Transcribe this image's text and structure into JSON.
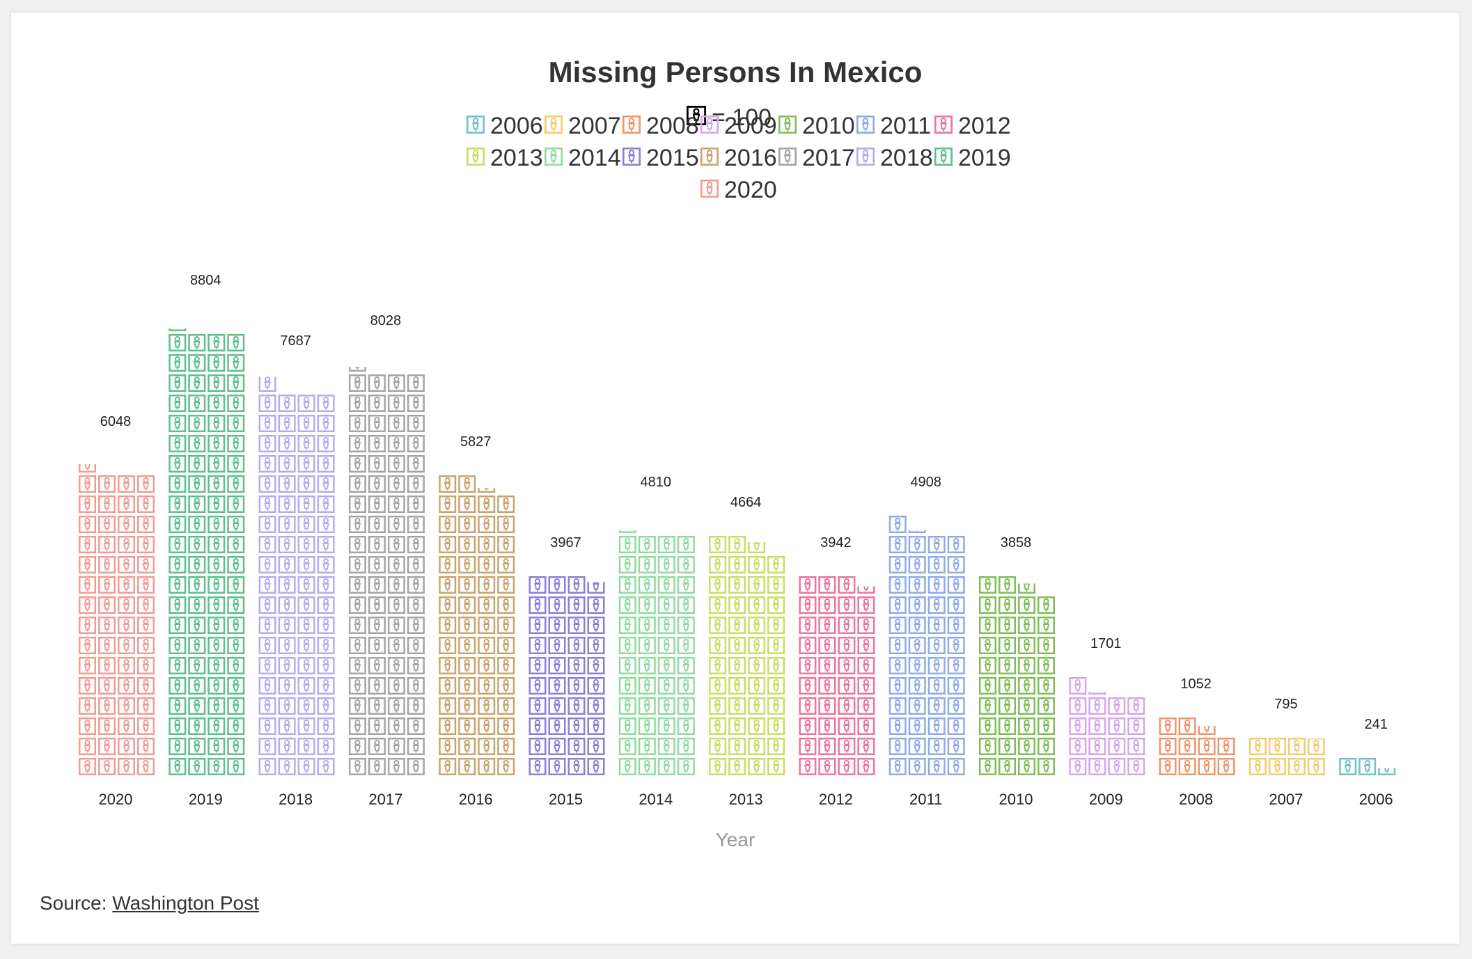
{
  "chart_data": {
    "type": "bar",
    "style": "pictogram",
    "title": "Missing Persons In Mexico",
    "unit_legend": {
      "label": "= 100",
      "value": 100
    },
    "xlabel": "Year",
    "ylabel": "",
    "categories": [
      "2020",
      "2019",
      "2018",
      "2017",
      "2016",
      "2015",
      "2014",
      "2013",
      "2012",
      "2011",
      "2010",
      "2009",
      "2008",
      "2007",
      "2006"
    ],
    "values": [
      6048,
      8804,
      7687,
      8028,
      5827,
      3967,
      4810,
      4664,
      3942,
      4908,
      3858,
      1701,
      1052,
      795,
      241
    ],
    "legend": [
      "2006",
      "2007",
      "2008",
      "2009",
      "2010",
      "2011",
      "2012",
      "2013",
      "2014",
      "2015",
      "2016",
      "2017",
      "2018",
      "2019",
      "2020"
    ],
    "legend_position": "top-center",
    "grid": false,
    "colors": {
      "2006": "#72c1c8",
      "2007": "#f4cc6c",
      "2008": "#ef946b",
      "2009": "#d5a5ec",
      "2010": "#7fbe57",
      "2011": "#8fa9ea",
      "2012": "#ec7599",
      "2013": "#c8de63",
      "2014": "#8fdb9e",
      "2015": "#8e7dd8",
      "2016": "#c8a46d",
      "2017": "#a4a4a4",
      "2018": "#b8aaee",
      "2019": "#5dbf8a",
      "2020": "#f09c95"
    }
  },
  "source": {
    "prefix": "Source: ",
    "link_text": "Washington Post"
  }
}
